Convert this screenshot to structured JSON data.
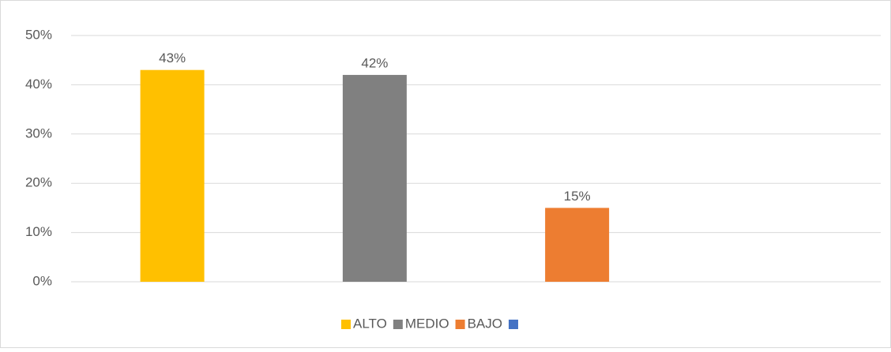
{
  "chart_data": {
    "type": "bar",
    "categories": [
      "ALTO",
      "MEDIO",
      "BAJO",
      null
    ],
    "colors": [
      "#ffc000",
      "#808080",
      "#ed7d31",
      "#4472c4"
    ],
    "values": [
      43,
      42,
      15,
      null
    ],
    "value_labels": [
      "43%",
      "42%",
      "15%",
      null
    ],
    "ylim": [
      0,
      50
    ],
    "yticks": [
      {
        "value": 0,
        "label": "0%"
      },
      {
        "value": 10,
        "label": "10%"
      },
      {
        "value": 20,
        "label": "20%"
      },
      {
        "value": 30,
        "label": "30%"
      },
      {
        "value": 40,
        "label": "40%"
      },
      {
        "value": 50,
        "label": "50%"
      }
    ],
    "grid": true,
    "legend": "bottom"
  }
}
